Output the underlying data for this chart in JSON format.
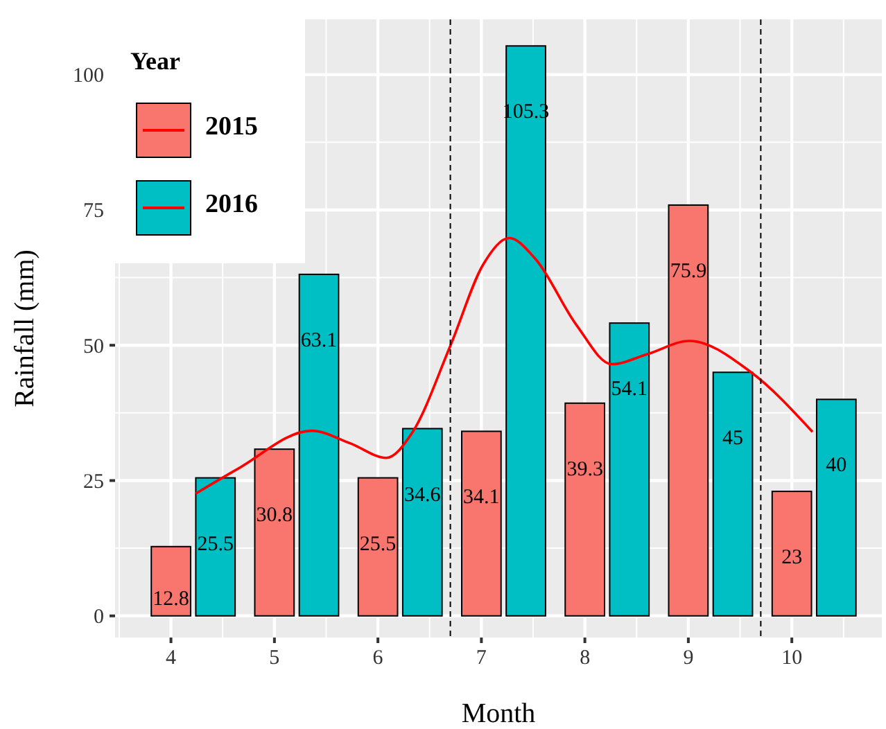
{
  "chart_data": {
    "type": "bar",
    "xlabel": "Month",
    "ylabel": "Rainfall (mm)",
    "legend_title": "Year",
    "x": [
      4,
      5,
      6,
      7,
      8,
      9,
      10
    ],
    "series": [
      {
        "name": "2015",
        "color": "#f8766d",
        "values": [
          12.8,
          30.8,
          25.5,
          34.1,
          39.3,
          75.9,
          23
        ],
        "value_labels": [
          "12.8",
          "30.8",
          "25.5",
          "34.1",
          "39.3",
          "75.9",
          "23"
        ]
      },
      {
        "name": "2016",
        "color": "#00bfc4",
        "values": [
          25.5,
          63.1,
          34.6,
          105.3,
          54.1,
          45,
          40
        ],
        "value_labels": [
          "25.5",
          "63.1",
          "34.6",
          "105.3",
          "54.1",
          "45",
          "40"
        ]
      },
      {
        "type": "line",
        "color": "#ff0000",
        "x": [
          4.24,
          4.64,
          5.36,
          5.73,
          6.08,
          6.33,
          6.7,
          7.02,
          7.27,
          7.52,
          7.92,
          8.26,
          8.61,
          9.01,
          9.6,
          10.2
        ],
        "values": [
          22.6,
          27.1,
          34.2,
          31.9,
          29.2,
          33.8,
          49.9,
          65,
          69.8,
          66,
          53.7,
          46.5,
          48.4,
          50.8,
          45.1,
          34
        ]
      }
    ],
    "xlim": [
      3.46,
      10.87
    ],
    "xticks": [
      4,
      5,
      6,
      7,
      8,
      9,
      10
    ],
    "ylim": [
      -4,
      110.2
    ],
    "yticks": [
      0,
      25,
      50,
      75,
      100
    ],
    "ref_lines": [
      {
        "axis": "x",
        "value": 6.7,
        "line_style": "dashed",
        "color": "#000000"
      },
      {
        "axis": "x",
        "value": 9.7,
        "line_style": "dashed",
        "color": "#000000"
      }
    ],
    "grid": true,
    "legend": "top left"
  }
}
